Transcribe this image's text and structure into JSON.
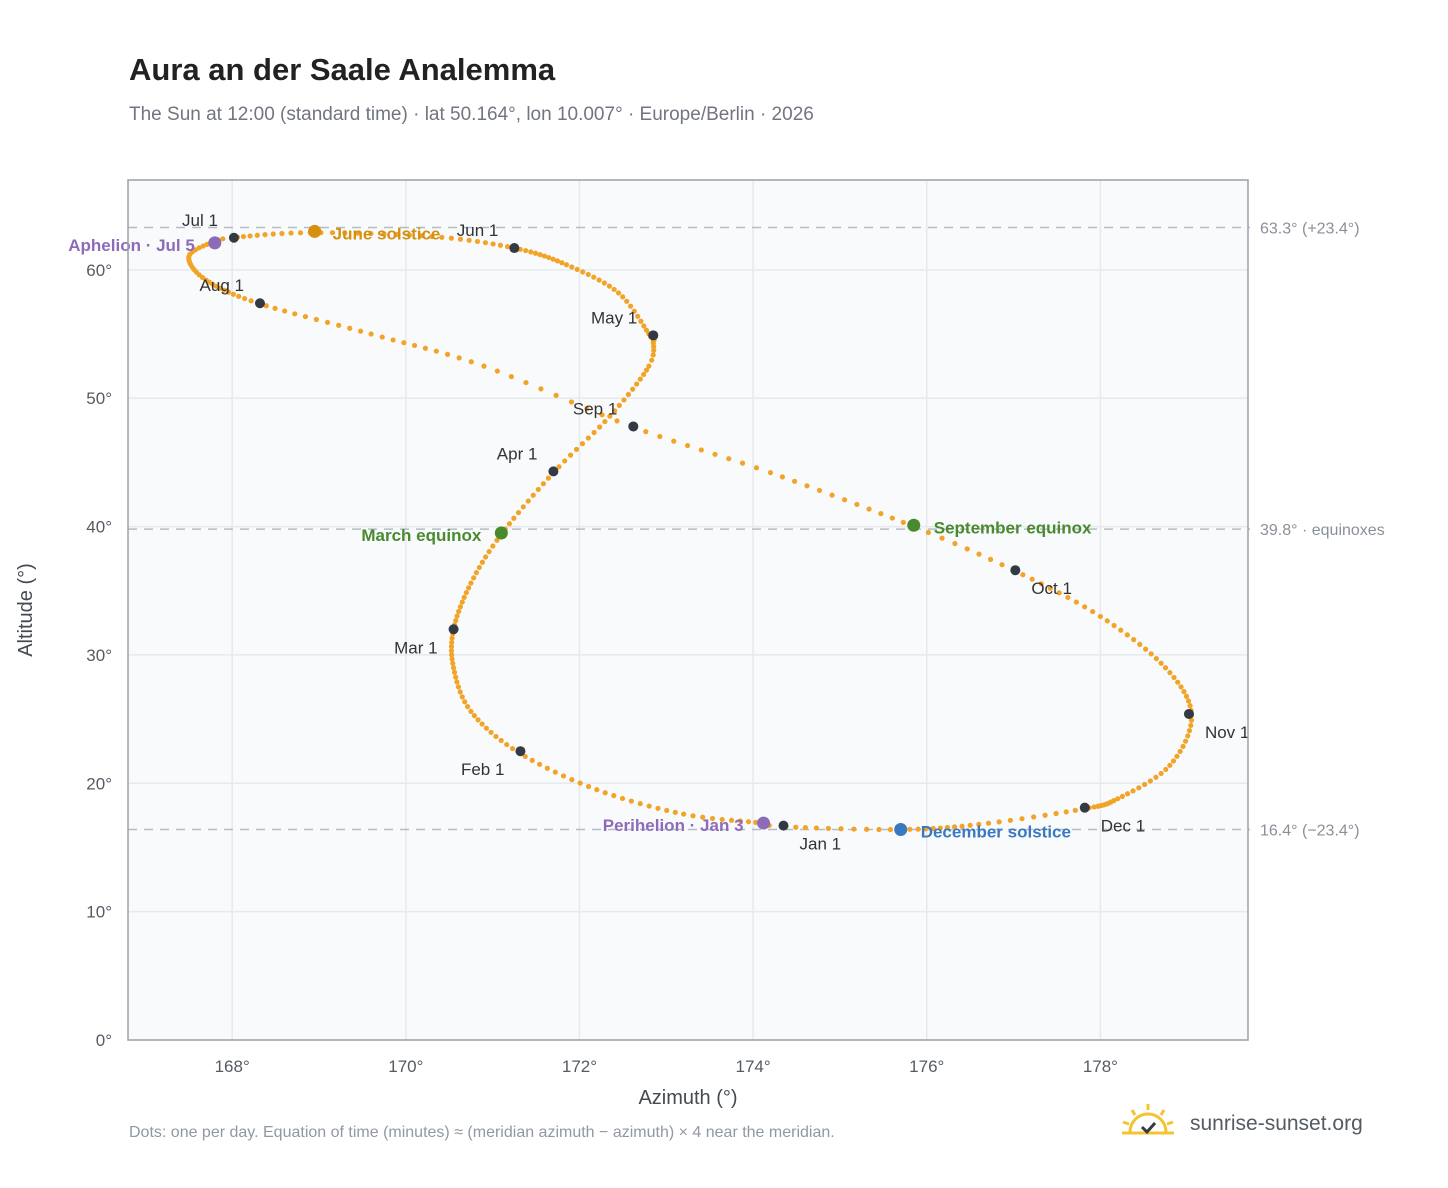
{
  "header": {
    "title": "Aura an der Saale Analemma",
    "subtitle": "The Sun at 12:00 (standard time) · lat 50.164°, lon 10.007° · Europe/Berlin · 2026"
  },
  "footer": {
    "note": "Dots: one per day. Equation of time (minutes) ≈ (meridian azimuth − azimuth) × 4 near the meridian.",
    "brand": "sunrise-sunset.org"
  },
  "colors": {
    "path": "#f2a428",
    "month_marker": "#333a44",
    "june_solstice": "#d4900e",
    "equinox": "#4a8a2e",
    "december_solstice": "#3a78c0",
    "apsis": "#8e6bb8",
    "grid": "#e6eaee",
    "reference_line": "#b4bcc6",
    "plot_bg": "#f8fafc",
    "frame": "#98a2ae",
    "brand_sun": "#f4c430"
  },
  "chart_data": {
    "type": "scatter",
    "title": "Aura an der Saale Analemma",
    "xlabel": "Azimuth (°)",
    "ylabel": "Altitude (°)",
    "xlim": [
      166.8,
      179.7
    ],
    "ylim": [
      0,
      67
    ],
    "x_ticks": [
      168,
      170,
      172,
      174,
      176,
      178
    ],
    "x_tick_labels": [
      "168°",
      "170°",
      "172°",
      "174°",
      "176°",
      "178°"
    ],
    "y_ticks": [
      0,
      10,
      20,
      30,
      40,
      50,
      60
    ],
    "y_tick_labels": [
      "0°",
      "10°",
      "20°",
      "30°",
      "40°",
      "50°",
      "60°"
    ],
    "grid": true,
    "series": [
      {
        "marker": "dot per day",
        "path_points": [
          {
            "day": 1,
            "x": 174.33,
            "y": 16.6
          },
          {
            "day": 3,
            "x": 174.1,
            "y": 16.9
          },
          {
            "day": 12,
            "x": 173.2,
            "y": 17.6
          },
          {
            "day": 22,
            "x": 172.2,
            "y": 19.5
          },
          {
            "day": 32,
            "x": 171.3,
            "y": 22.4
          },
          {
            "day": 42,
            "x": 170.75,
            "y": 25.6
          },
          {
            "day": 51,
            "x": 170.55,
            "y": 29.0
          },
          {
            "day": 60,
            "x": 170.55,
            "y": 32.0
          },
          {
            "day": 70,
            "x": 170.75,
            "y": 35.6
          },
          {
            "day": 79,
            "x": 171.1,
            "y": 39.4
          },
          {
            "day": 90,
            "x": 171.7,
            "y": 44.2
          },
          {
            "day": 100,
            "x": 172.35,
            "y": 48.6
          },
          {
            "day": 110,
            "x": 172.8,
            "y": 52.5
          },
          {
            "day": 116,
            "x": 172.85,
            "y": 54.5
          },
          {
            "day": 121,
            "x": 172.82,
            "y": 54.8
          },
          {
            "day": 131,
            "x": 172.45,
            "y": 58.2
          },
          {
            "day": 141,
            "x": 171.85,
            "y": 60.4
          },
          {
            "day": 152,
            "x": 171.25,
            "y": 61.7
          },
          {
            "day": 162,
            "x": 170.3,
            "y": 62.6
          },
          {
            "day": 172,
            "x": 168.9,
            "y": 62.9
          },
          {
            "day": 182,
            "x": 168.0,
            "y": 62.5
          },
          {
            "day": 186,
            "x": 167.75,
            "y": 62.1
          },
          {
            "day": 193,
            "x": 167.5,
            "y": 61.0
          },
          {
            "day": 202,
            "x": 167.7,
            "y": 59.2
          },
          {
            "day": 213,
            "x": 168.3,
            "y": 57.4
          },
          {
            "day": 224,
            "x": 169.6,
            "y": 55.0
          },
          {
            "day": 234,
            "x": 170.9,
            "y": 52.5
          },
          {
            "day": 244,
            "x": 172.6,
            "y": 47.8
          },
          {
            "day": 254,
            "x": 174.2,
            "y": 44.2
          },
          {
            "day": 266,
            "x": 175.85,
            "y": 40.0
          },
          {
            "day": 274,
            "x": 177.0,
            "y": 36.6
          },
          {
            "day": 284,
            "x": 178.0,
            "y": 33.0
          },
          {
            "day": 295,
            "x": 178.75,
            "y": 29.0
          },
          {
            "day": 305,
            "x": 179.05,
            "y": 25.3
          },
          {
            "day": 315,
            "x": 178.8,
            "y": 21.4
          },
          {
            "day": 325,
            "x": 178.2,
            "y": 18.8
          },
          {
            "day": 335,
            "x": 177.8,
            "y": 18.0
          },
          {
            "day": 345,
            "x": 176.6,
            "y": 16.8
          },
          {
            "day": 355,
            "x": 175.7,
            "y": 16.4
          },
          {
            "day": 365,
            "x": 174.4,
            "y": 16.6
          }
        ]
      }
    ],
    "month_markers": [
      {
        "label": "Jan 1",
        "x": 174.35,
        "y": 16.7,
        "anchor": "start",
        "dx": 16,
        "dy": 24
      },
      {
        "label": "Feb 1",
        "x": 171.32,
        "y": 22.5,
        "anchor": "end",
        "dx": -16,
        "dy": 24
      },
      {
        "label": "Mar 1",
        "x": 170.55,
        "y": 32.0,
        "anchor": "end",
        "dx": -16,
        "dy": 24
      },
      {
        "label": "Apr 1",
        "x": 171.7,
        "y": 44.3,
        "anchor": "end",
        "dx": -16,
        "dy": -12
      },
      {
        "label": "May 1",
        "x": 172.85,
        "y": 54.9,
        "anchor": "end",
        "dx": -16,
        "dy": -12
      },
      {
        "label": "Jun 1",
        "x": 171.25,
        "y": 61.7,
        "anchor": "end",
        "dx": -16,
        "dy": -12
      },
      {
        "label": "Jul 1",
        "x": 168.02,
        "y": 62.5,
        "anchor": "end",
        "dx": -16,
        "dy": -12
      },
      {
        "label": "Aug 1",
        "x": 168.32,
        "y": 57.4,
        "anchor": "end",
        "dx": -16,
        "dy": -12
      },
      {
        "label": "Sep 1",
        "x": 172.62,
        "y": 47.8,
        "anchor": "end",
        "dx": -16,
        "dy": -12
      },
      {
        "label": "Oct 1",
        "x": 177.02,
        "y": 36.6,
        "anchor": "start",
        "dx": 16,
        "dy": 24
      },
      {
        "label": "Nov 1",
        "x": 179.02,
        "y": 25.4,
        "anchor": "start",
        "dx": 16,
        "dy": 24
      },
      {
        "label": "Dec 1",
        "x": 177.82,
        "y": 18.1,
        "anchor": "start",
        "dx": 16,
        "dy": 24
      }
    ],
    "events": [
      {
        "label": "June solstice",
        "x": 168.95,
        "y": 63.0,
        "color": "#d4900e",
        "anchor": "start",
        "dx": 18,
        "dy": 8
      },
      {
        "label": "March equinox",
        "x": 171.1,
        "y": 39.5,
        "color": "#4a8a2e",
        "anchor": "end",
        "dx": -20,
        "dy": 8
      },
      {
        "label": "September equinox",
        "x": 175.85,
        "y": 40.1,
        "color": "#4a8a2e",
        "anchor": "start",
        "dx": 20,
        "dy": 8
      },
      {
        "label": "December solstice",
        "x": 175.7,
        "y": 16.4,
        "color": "#3a78c0",
        "anchor": "start",
        "dx": 20,
        "dy": 8
      },
      {
        "label": "Aphelion · Jul 5",
        "x": 167.8,
        "y": 62.1,
        "color": "#8e6bb8",
        "anchor": "end",
        "dx": -20,
        "dy": 8
      },
      {
        "label": "Perihelion · Jan 3",
        "x": 174.12,
        "y": 16.9,
        "color": "#8e6bb8",
        "anchor": "end",
        "dx": -20,
        "dy": 8
      }
    ],
    "reference_lines": [
      {
        "y": 63.3,
        "label": "63.3° (+23.4°)"
      },
      {
        "y": 39.8,
        "label": "39.8° · equinoxes"
      },
      {
        "y": 16.4,
        "label": "16.4° (−23.4°)"
      }
    ]
  }
}
